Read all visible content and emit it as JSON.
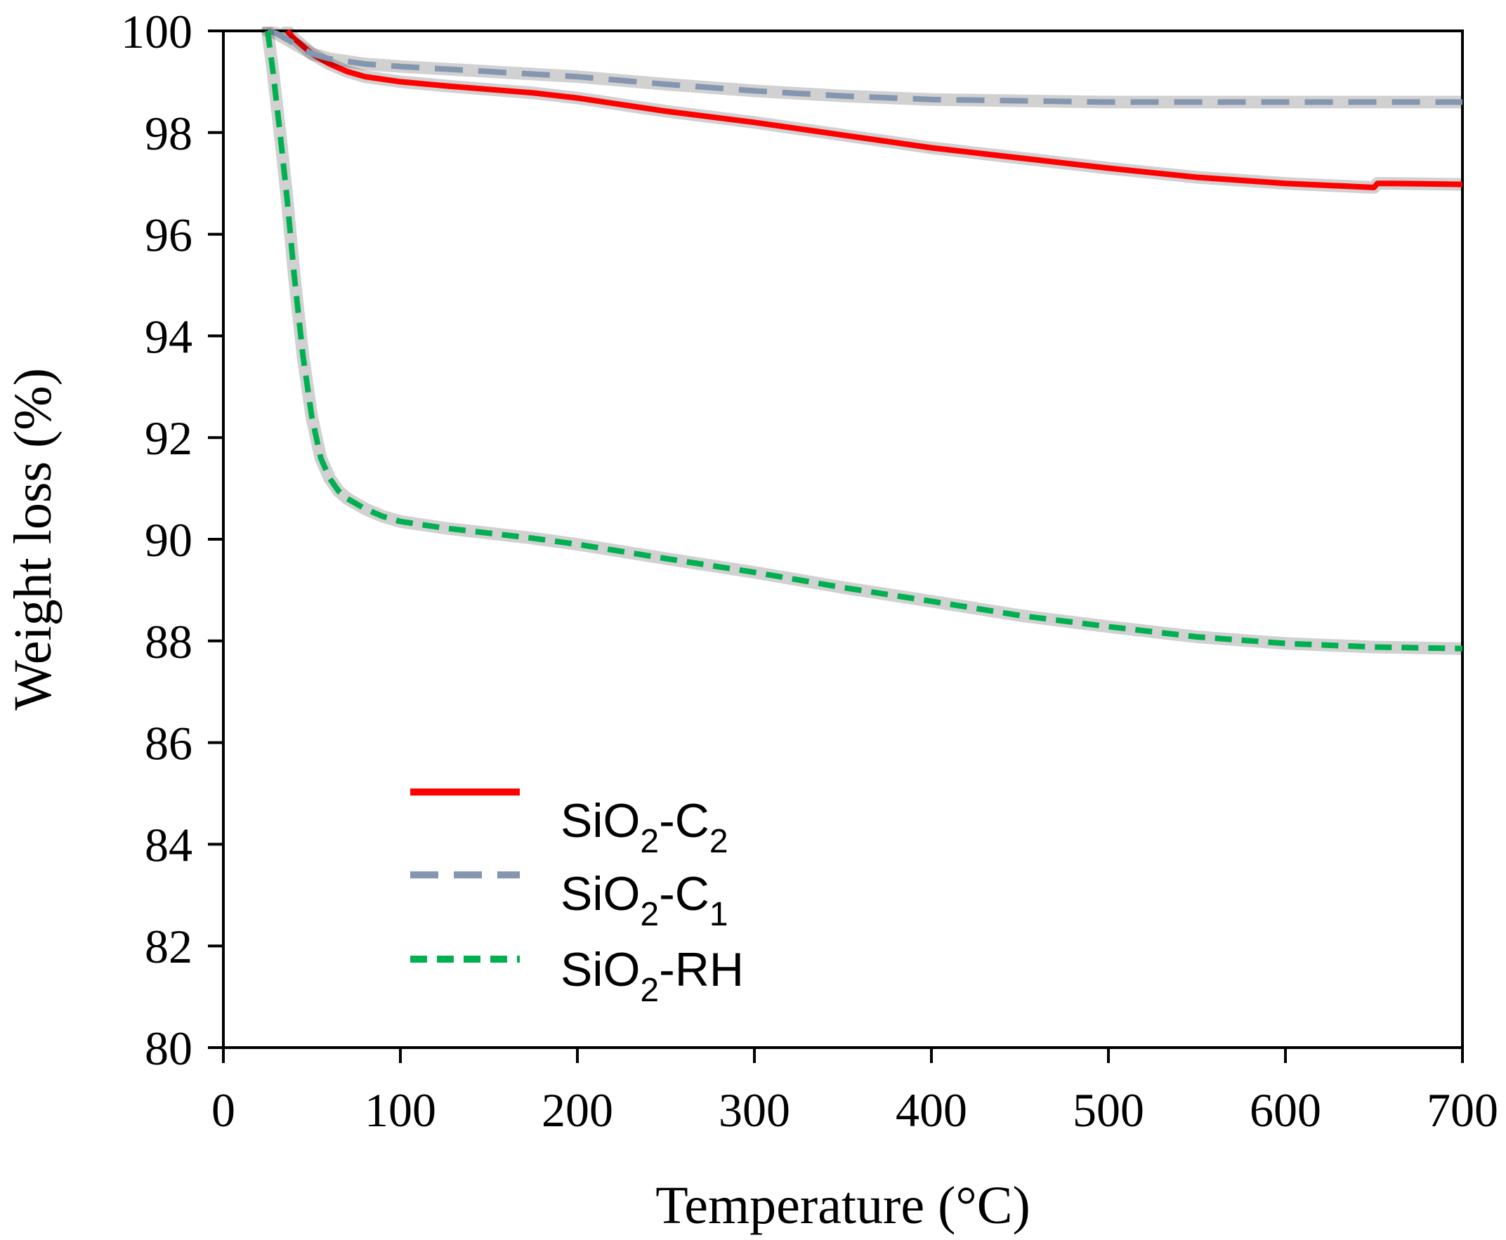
{
  "chart_data": {
    "type": "line",
    "xlabel": "Temperature (°C)",
    "ylabel": "Weight loss (%)",
    "xlim": [
      0,
      700
    ],
    "ylim": [
      80,
      100
    ],
    "xticks": [
      0,
      100,
      200,
      300,
      400,
      500,
      600,
      700
    ],
    "yticks": [
      80,
      82,
      84,
      86,
      88,
      90,
      92,
      94,
      96,
      98,
      100
    ],
    "grid": false,
    "legend_position": "bottom-left",
    "series": [
      {
        "name": "SiO2-C2",
        "label_main": "SiO",
        "label_sub1": "2",
        "label_mid": "-C",
        "label_sub2": "2",
        "label_tail": "",
        "color": "#ff0000",
        "dash": "solid",
        "x": [
          36,
          40,
          50,
          60,
          70,
          80,
          100,
          125,
          150,
          175,
          200,
          250,
          300,
          350,
          400,
          450,
          500,
          550,
          600,
          650,
          652,
          660,
          700
        ],
        "y": [
          100,
          99.85,
          99.55,
          99.35,
          99.2,
          99.1,
          99.0,
          98.92,
          98.85,
          98.78,
          98.68,
          98.42,
          98.2,
          97.95,
          97.7,
          97.5,
          97.3,
          97.12,
          97.0,
          96.92,
          97.0,
          97.0,
          96.98
        ]
      },
      {
        "name": "SiO2-C1",
        "label_main": "SiO",
        "label_sub1": "2",
        "label_mid": "-C",
        "label_sub2": "1",
        "label_tail": "",
        "color": "#8496b0",
        "dash": "long-dash",
        "x": [
          25,
          30,
          40,
          50,
          60,
          80,
          100,
          150,
          200,
          250,
          300,
          350,
          400,
          500,
          600,
          700
        ],
        "y": [
          100,
          99.95,
          99.75,
          99.55,
          99.45,
          99.35,
          99.3,
          99.2,
          99.1,
          98.95,
          98.82,
          98.72,
          98.65,
          98.6,
          98.6,
          98.6
        ]
      },
      {
        "name": "SiO2-RH",
        "label_main": "SiO",
        "label_sub1": "2",
        "label_mid": "-RH",
        "label_sub2": "",
        "label_tail": "",
        "color": "#00b050",
        "dash": "short-dash",
        "x": [
          25,
          28,
          32,
          36,
          40,
          45,
          50,
          55,
          60,
          65,
          70,
          80,
          90,
          100,
          125,
          150,
          175,
          200,
          250,
          300,
          350,
          400,
          450,
          500,
          550,
          600,
          650,
          700
        ],
        "y": [
          100,
          99.2,
          98.0,
          96.7,
          95.2,
          93.6,
          92.4,
          91.6,
          91.2,
          90.95,
          90.8,
          90.6,
          90.45,
          90.35,
          90.22,
          90.12,
          90.02,
          89.9,
          89.62,
          89.35,
          89.05,
          88.78,
          88.5,
          88.28,
          88.08,
          87.95,
          87.88,
          87.85
        ]
      }
    ]
  }
}
